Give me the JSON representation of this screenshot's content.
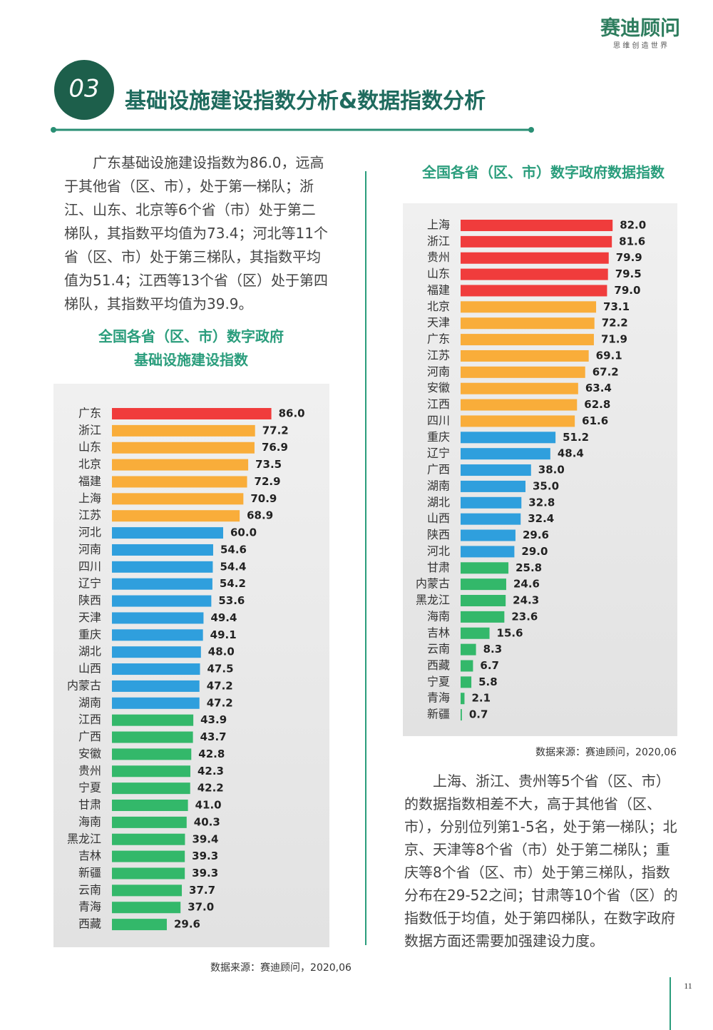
{
  "header": {
    "logo": "赛迪顾问",
    "slogan": "思 维 创 造 世 界",
    "section_number": "03",
    "title": "基础设施建设指数分析&数据指数分析"
  },
  "paragraphs": [
    "广东基础设施建设指数为86.0，远高于其他省（区、市），处于第一梯队；浙江、山东、北京等6个省（市）处于第二梯队，其指数平均值为73.4；河北等11个省（区、市）处于第三梯队，其指数平均值为51.4；江西等13个省（区）处于第四梯队，其指数平均值为39.9。",
    "上海、浙江、贵州等5个省（区、市）的数据指数相差不大，高于其他省（区、市），分别位列第1-5名，处于第一梯队；北京、天津等8个省（市）处于第二梯队；重庆等8个省（区、市）处于第三梯队，指数分布在29-52之间；甘肃等10个省（区）的指数低于均值，处于第四梯队，在数字政府数据方面还需要加强建设力度。"
  ],
  "chart_data": [
    {
      "type": "bar",
      "orientation": "horizontal",
      "title": [
        "全国各省（区、市）数字政府",
        "基础设施建设指数"
      ],
      "categories": [
        "广东",
        "浙江",
        "山东",
        "北京",
        "福建",
        "上海",
        "江苏",
        "河北",
        "河南",
        "四川",
        "辽宁",
        "陕西",
        "天津",
        "重庆",
        "湖北",
        "山西",
        "内蒙古",
        "湖南",
        "江西",
        "广西",
        "安徽",
        "贵州",
        "宁夏",
        "甘肃",
        "海南",
        "黑龙江",
        "吉林",
        "新疆",
        "云南",
        "青海",
        "西藏"
      ],
      "values": [
        86.0,
        77.2,
        76.9,
        73.5,
        72.9,
        70.9,
        68.9,
        60.0,
        54.6,
        54.4,
        54.2,
        53.6,
        49.4,
        49.1,
        48.0,
        47.5,
        47.2,
        47.2,
        43.9,
        43.7,
        42.8,
        42.3,
        42.2,
        41.0,
        40.3,
        39.4,
        39.3,
        39.3,
        37.7,
        37.0,
        29.6
      ],
      "value_labels": [
        "86.0",
        "77.2",
        "76.9",
        "73.5",
        "72.9",
        "70.9",
        "68.9",
        "60.0",
        "54.6",
        "54.4",
        "54.2",
        "53.6",
        "49.4",
        "49.1",
        "48.0",
        "47.5",
        "47.2",
        "47.2",
        "43.9",
        "43.7",
        "42.8",
        "42.3",
        "42.2",
        "41.0",
        "40.3",
        "39.4",
        "39.3",
        "39.3",
        "37.7",
        "37.0",
        "29.6"
      ],
      "colors": [
        "#f03c3c",
        "#f9ad3a",
        "#f9ad3a",
        "#f9ad3a",
        "#f9ad3a",
        "#f9ad3a",
        "#f9ad3a",
        "#2f9fdd",
        "#2f9fdd",
        "#2f9fdd",
        "#2f9fdd",
        "#2f9fdd",
        "#2f9fdd",
        "#2f9fdd",
        "#2f9fdd",
        "#2f9fdd",
        "#2f9fdd",
        "#2f9fdd",
        "#33b86a",
        "#33b86a",
        "#33b86a",
        "#33b86a",
        "#33b86a",
        "#33b86a",
        "#33b86a",
        "#33b86a",
        "#33b86a",
        "#33b86a",
        "#33b86a",
        "#33b86a",
        "#33b86a"
      ],
      "source": "数据来源：赛迪顾问，2020,06"
    },
    {
      "type": "bar",
      "orientation": "horizontal",
      "title": "全国各省（区、市）数字政府数据指数",
      "categories": [
        "上海",
        "浙江",
        "贵州",
        "山东",
        "福建",
        "北京",
        "天津",
        "广东",
        "江苏",
        "河南",
        "安徽",
        "江西",
        "四川",
        "重庆",
        "辽宁",
        "广西",
        "湖南",
        "湖北",
        "山西",
        "陕西",
        "河北",
        "甘肃",
        "内蒙古",
        "黑龙江",
        "海南",
        "吉林",
        "云南",
        "西藏",
        "宁夏",
        "青海",
        "新疆"
      ],
      "values": [
        82.0,
        81.6,
        79.9,
        79.5,
        79.0,
        73.1,
        72.2,
        71.9,
        69.1,
        67.2,
        63.4,
        62.8,
        61.6,
        51.2,
        48.4,
        38.0,
        35.0,
        32.8,
        32.4,
        29.6,
        29.0,
        25.8,
        24.6,
        24.3,
        23.6,
        15.6,
        8.3,
        6.7,
        5.8,
        2.1,
        0.7
      ],
      "value_labels": [
        "82.0",
        "81.6",
        "79.9",
        "79.5",
        "79.0",
        "73.1",
        "72.2",
        "71.9",
        "69.1",
        "67.2",
        "63.4",
        "62.8",
        "61.6",
        "51.2",
        "48.4",
        "38.0",
        "35.0",
        "32.8",
        "32.4",
        "29.6",
        "29.0",
        "25.8",
        "24.6",
        "24.3",
        "23.6",
        "15.6",
        "8.3",
        "6.7",
        "5.8",
        "2.1",
        "0.7"
      ],
      "colors": [
        "#f03c3c",
        "#f03c3c",
        "#f03c3c",
        "#f03c3c",
        "#f03c3c",
        "#f9ad3a",
        "#f9ad3a",
        "#f9ad3a",
        "#f9ad3a",
        "#f9ad3a",
        "#f9ad3a",
        "#f9ad3a",
        "#f9ad3a",
        "#2f9fdd",
        "#2f9fdd",
        "#2f9fdd",
        "#2f9fdd",
        "#2f9fdd",
        "#2f9fdd",
        "#2f9fdd",
        "#2f9fdd",
        "#33b86a",
        "#33b86a",
        "#33b86a",
        "#33b86a",
        "#33b86a",
        "#33b86a",
        "#33b86a",
        "#33b86a",
        "#33b86a",
        "#33b86a"
      ],
      "source": "数据来源：赛迪顾问，2020,06"
    }
  ],
  "page_number": "11"
}
